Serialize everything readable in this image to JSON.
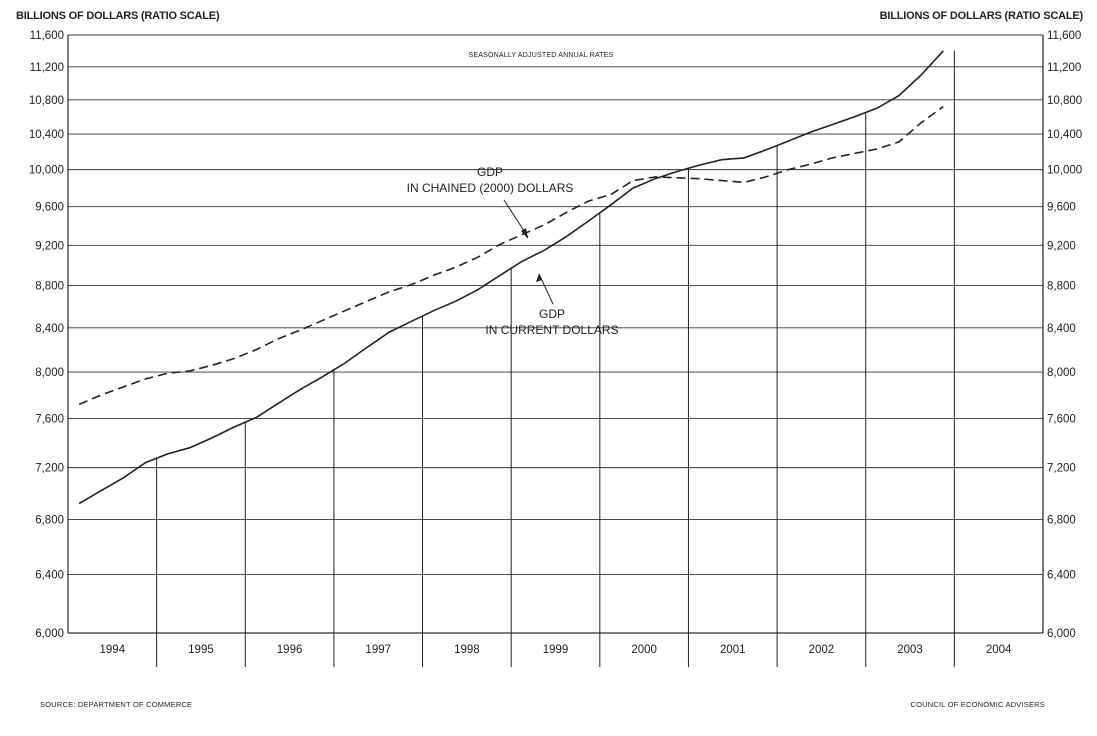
{
  "chart_data": {
    "type": "line",
    "y_scale": "log",
    "ylim": [
      6000,
      11600
    ],
    "yticks": [
      6000,
      6400,
      6800,
      7200,
      7600,
      8000,
      8400,
      8800,
      9200,
      9600,
      10000,
      10400,
      10800,
      11200,
      11600
    ],
    "yticks_labels": [
      "6,000",
      "6,400",
      "6,800",
      "7,200",
      "7,600",
      "8,000",
      "8,400",
      "8,800",
      "9,200",
      "9,600",
      "10,000",
      "10,400",
      "10,800",
      "11,200",
      "11,600"
    ],
    "left_axis_label": "BILLIONS OF DOLLARS (RATIO SCALE)",
    "right_axis_label": "BILLIONS OF DOLLARS (RATIO SCALE)",
    "note": "SEASONALLY ADJUSTED ANNUAL RATES",
    "years": [
      "1994",
      "1995",
      "1996",
      "1997",
      "1998",
      "1999",
      "2000",
      "2001",
      "2002",
      "2003",
      "2004"
    ],
    "quarters_x": [
      "1994 Q1",
      "1994 Q2",
      "1994 Q3",
      "1994 Q4",
      "1995 Q1",
      "1995 Q2",
      "1995 Q3",
      "1995 Q4",
      "1996 Q1",
      "1996 Q2",
      "1996 Q3",
      "1996 Q4",
      "1997 Q1",
      "1997 Q2",
      "1997 Q3",
      "1997 Q4",
      "1998 Q1",
      "1998 Q2",
      "1998 Q3",
      "1998 Q4",
      "1999 Q1",
      "1999 Q2",
      "1999 Q3",
      "1999 Q4",
      "2000 Q1",
      "2000 Q2",
      "2000 Q3",
      "2000 Q4",
      "2001 Q1",
      "2001 Q2",
      "2001 Q3",
      "2001 Q4",
      "2002 Q1",
      "2002 Q2",
      "2002 Q3",
      "2002 Q4",
      "2003 Q1",
      "2003 Q2",
      "2003 Q3",
      "2003 Q4"
    ],
    "grid": true,
    "series": [
      {
        "name": "GDP IN CURRENT DOLLARS",
        "style": "solid",
        "values": [
          6920,
          7020,
          7120,
          7240,
          7310,
          7360,
          7440,
          7530,
          7610,
          7730,
          7850,
          7960,
          8080,
          8220,
          8360,
          8460,
          8560,
          8650,
          8760,
          8900,
          9040,
          9150,
          9290,
          9450,
          9620,
          9800,
          9900,
          9980,
          10050,
          10110,
          10130,
          10220,
          10320,
          10420,
          10510,
          10600,
          10700,
          10850,
          11100,
          11400
        ]
      },
      {
        "name": "GDP IN CHAINED (2000) DOLLARS",
        "style": "dashed",
        "values": [
          7720,
          7800,
          7870,
          7940,
          7990,
          8010,
          8060,
          8120,
          8200,
          8300,
          8380,
          8470,
          8560,
          8650,
          8740,
          8810,
          8900,
          8980,
          9080,
          9210,
          9310,
          9410,
          9540,
          9660,
          9730,
          9880,
          9920,
          9910,
          9900,
          9880,
          9860,
          9920,
          10000,
          10060,
          10130,
          10180,
          10230,
          10310,
          10530,
          10720
        ]
      }
    ],
    "annotations": {
      "chained_line1": "GDP",
      "chained_line2": "IN CHAINED (2000) DOLLARS",
      "current_line1": "GDP",
      "current_line2": "IN CURRENT DOLLARS"
    },
    "line_color": "#222222",
    "grid_color": "#333333"
  },
  "footer": {
    "source": "SOURCE: DEPARTMENT OF COMMERCE",
    "credit": "COUNCIL OF ECONOMIC ADVISERS"
  }
}
